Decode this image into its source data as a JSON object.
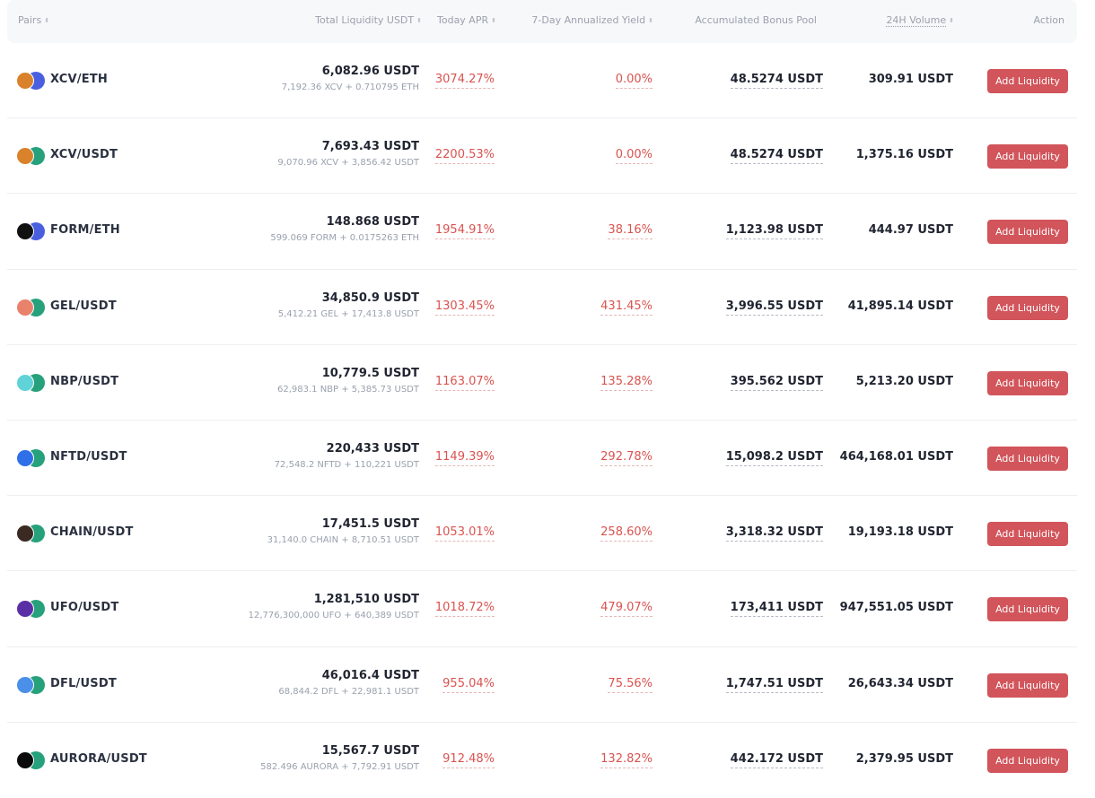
{
  "header": {
    "pairs": "Pairs",
    "liquidity": "Total Liquidity USDT",
    "apr": "Today APR",
    "yield": "7-Day Annualized Yield",
    "bonus": "Accumulated Bonus Pool",
    "volume": "24H Volume",
    "action": "Action",
    "sort_glyph": "⬍"
  },
  "rows": [
    {
      "pair": "XCV/ETH",
      "liquidity": "6,082.96 USDT",
      "composition": "7,192.36 XCV + 0.710795 ETH",
      "apr": "3074.27%",
      "yield": "0.00%",
      "bonus": "48.5274 USDT",
      "volume": "309.91 USDT",
      "action": "Add Liquidity",
      "icon1": "xcv-token-icon",
      "icon2": "eth-token-icon"
    },
    {
      "pair": "XCV/USDT",
      "liquidity": "7,693.43 USDT",
      "composition": "9,070.96 XCV + 3,856.42 USDT",
      "apr": "2200.53%",
      "yield": "0.00%",
      "bonus": "48.5274 USDT",
      "volume": "1,375.16 USDT",
      "action": "Add Liquidity",
      "icon1": "xcv-token-icon",
      "icon2": "usdt-token-icon"
    },
    {
      "pair": "FORM/ETH",
      "liquidity": "148.868 USDT",
      "composition": "599.069 FORM + 0.0175263 ETH",
      "apr": "1954.91%",
      "yield": "38.16%",
      "bonus": "1,123.98 USDT",
      "volume": "444.97 USDT",
      "action": "Add Liquidity",
      "icon1": "form-token-icon",
      "icon2": "eth-token-icon"
    },
    {
      "pair": "GEL/USDT",
      "liquidity": "34,850.9 USDT",
      "composition": "5,412.21 GEL + 17,413.8 USDT",
      "apr": "1303.45%",
      "yield": "431.45%",
      "bonus": "3,996.55 USDT",
      "volume": "41,895.14 USDT",
      "action": "Add Liquidity",
      "icon1": "gel-token-icon",
      "icon2": "usdt-token-icon"
    },
    {
      "pair": "NBP/USDT",
      "liquidity": "10,779.5 USDT",
      "composition": "62,983.1 NBP + 5,385.73 USDT",
      "apr": "1163.07%",
      "yield": "135.28%",
      "bonus": "395.562 USDT",
      "volume": "5,213.20 USDT",
      "action": "Add Liquidity",
      "icon1": "nbp-token-icon",
      "icon2": "usdt-token-icon"
    },
    {
      "pair": "NFTD/USDT",
      "liquidity": "220,433 USDT",
      "composition": "72,548.2 NFTD + 110,221 USDT",
      "apr": "1149.39%",
      "yield": "292.78%",
      "bonus": "15,098.2 USDT",
      "volume": "464,168.01 USDT",
      "action": "Add Liquidity",
      "icon1": "nftd-token-icon",
      "icon2": "usdt-token-icon"
    },
    {
      "pair": "CHAIN/USDT",
      "liquidity": "17,451.5 USDT",
      "composition": "31,140.0 CHAIN + 8,710.51 USDT",
      "apr": "1053.01%",
      "yield": "258.60%",
      "bonus": "3,318.32 USDT",
      "volume": "19,193.18 USDT",
      "action": "Add Liquidity",
      "icon1": "chain-token-icon",
      "icon2": "usdt-token-icon"
    },
    {
      "pair": "UFO/USDT",
      "liquidity": "1,281,510 USDT",
      "composition": "12,776,300,000 UFO + 640,389 USDT",
      "apr": "1018.72%",
      "yield": "479.07%",
      "bonus": "173,411 USDT",
      "volume": "947,551.05 USDT",
      "action": "Add Liquidity",
      "icon1": "ufo-token-icon",
      "icon2": "usdt-token-icon"
    },
    {
      "pair": "DFL/USDT",
      "liquidity": "46,016.4 USDT",
      "composition": "68,844.2 DFL + 22,981.1 USDT",
      "apr": "955.04%",
      "yield": "75.56%",
      "bonus": "1,747.51 USDT",
      "volume": "26,643.34 USDT",
      "action": "Add Liquidity",
      "icon1": "dfl-token-icon",
      "icon2": "usdt-token-icon"
    },
    {
      "pair": "AURORA/USDT",
      "liquidity": "15,567.7 USDT",
      "composition": "582.496 AURORA + 7,792.91 USDT",
      "apr": "912.48%",
      "yield": "132.82%",
      "bonus": "442.172 USDT",
      "volume": "2,379.95 USDT",
      "action": "Add Liquidity",
      "icon1": "aurora-token-icon",
      "icon2": "usdt-token-icon"
    }
  ],
  "colors": {
    "accent_red": "#d1555b",
    "value_red": "#d9534f",
    "header_bg": "#f7f8fa",
    "icon_colors": {
      "xcv": "#d9822b",
      "eth": "#4a5fe0",
      "usdt": "#26a17b",
      "form": "#111111",
      "gel": "#e8826a",
      "nbp": "#5fd3d8",
      "nftd": "#2f6fe8",
      "chain": "#3a2a22",
      "ufo": "#5a2fa6",
      "dfl": "#4a8fe8",
      "aurora": "#0b0b0b"
    }
  }
}
